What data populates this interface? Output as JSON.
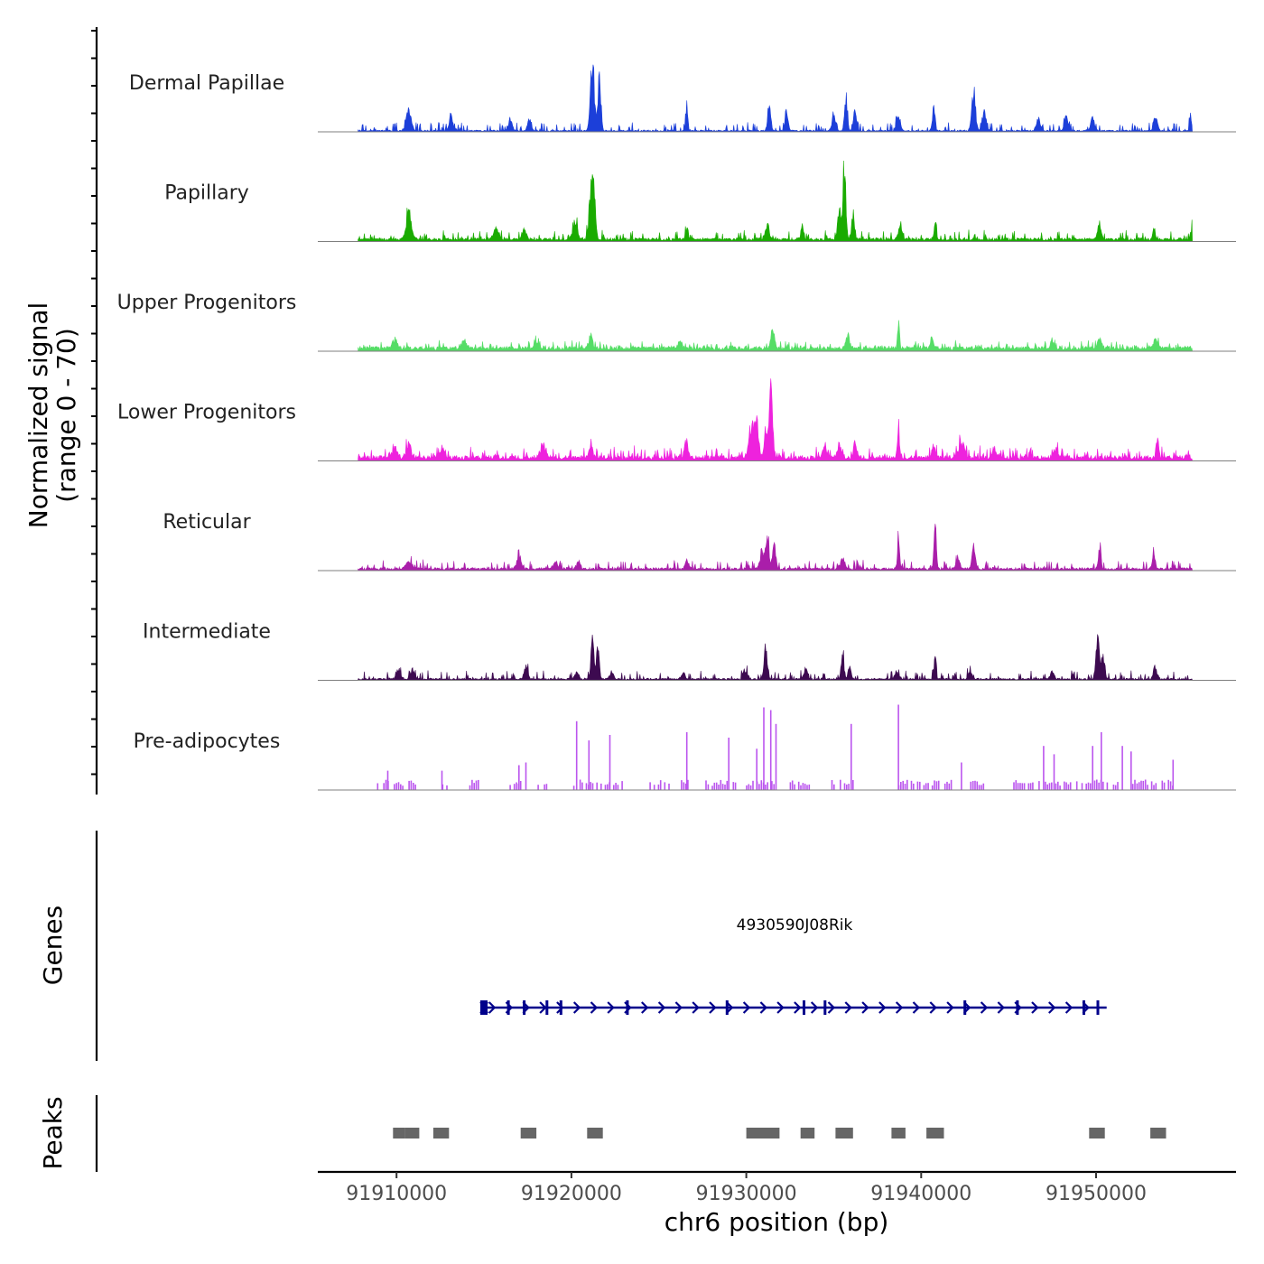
{
  "chart_data": {
    "type": "area",
    "title": "",
    "ylabel": "Normalized signal",
    "ylabel_range": "(range 0 - 70)",
    "ylim": [
      0,
      70
    ],
    "xlabel": "chr6 position (bp)",
    "xlim": [
      91905500,
      91958000
    ],
    "x_ticks": [
      91910000,
      91920000,
      91930000,
      91940000,
      91950000
    ],
    "x_tick_labels": [
      "91910000",
      "91920000",
      "91930000",
      "91940000",
      "91950000"
    ],
    "signal_extent": [
      91907800,
      91955500
    ],
    "tracks": [
      {
        "name": "Dermal Papillae",
        "color": "#1c3fd9",
        "sparse": false,
        "baseline": 0.6,
        "noise": 0.9,
        "peaks": [
          [
            91910700,
            11,
            200
          ],
          [
            91913100,
            8,
            150
          ],
          [
            91916500,
            6,
            150
          ],
          [
            91917600,
            6,
            150
          ],
          [
            91921200,
            38,
            150
          ],
          [
            91921600,
            30,
            120
          ],
          [
            91926600,
            14,
            80
          ],
          [
            91931300,
            13,
            120
          ],
          [
            91932300,
            11,
            120
          ],
          [
            91935000,
            7,
            150
          ],
          [
            91935700,
            17,
            120
          ],
          [
            91936200,
            10,
            120
          ],
          [
            91938700,
            8,
            150
          ],
          [
            91940700,
            12,
            100
          ],
          [
            91943000,
            21,
            150
          ],
          [
            91943600,
            10,
            150
          ],
          [
            91946700,
            7,
            150
          ],
          [
            91948300,
            7,
            150
          ],
          [
            91949800,
            7,
            150
          ],
          [
            91953400,
            7,
            150
          ],
          [
            91955400,
            8,
            80
          ]
        ]
      },
      {
        "name": "Papillary",
        "color": "#1aab00",
        "sparse": false,
        "baseline": 1.2,
        "noise": 0.9,
        "peaks": [
          [
            91910700,
            14,
            200
          ],
          [
            91915700,
            6,
            200
          ],
          [
            91917300,
            5,
            150
          ],
          [
            91920200,
            9,
            200
          ],
          [
            91921100,
            24,
            150
          ],
          [
            91921300,
            28,
            120
          ],
          [
            91926600,
            7,
            100
          ],
          [
            91931200,
            8,
            150
          ],
          [
            91933200,
            7,
            100
          ],
          [
            91935600,
            40,
            120
          ],
          [
            91935300,
            14,
            120
          ],
          [
            91936100,
            14,
            100
          ],
          [
            91938800,
            7,
            150
          ],
          [
            91940800,
            8,
            100
          ],
          [
            91950200,
            6,
            150
          ],
          [
            91953300,
            6,
            100
          ],
          [
            91955500,
            9,
            80
          ]
        ]
      },
      {
        "name": "Upper Progenitors",
        "color": "#55dd66",
        "sparse": false,
        "baseline": 1.6,
        "noise": 0.7,
        "peaks": [
          [
            91909900,
            5,
            200
          ],
          [
            91913900,
            4,
            200
          ],
          [
            91918000,
            4,
            200
          ],
          [
            91921100,
            6,
            150
          ],
          [
            91926200,
            4,
            150
          ],
          [
            91931500,
            10,
            150
          ],
          [
            91935800,
            7,
            150
          ],
          [
            91938700,
            14,
            80
          ],
          [
            91940600,
            5,
            150
          ],
          [
            91947500,
            4,
            150
          ],
          [
            91950200,
            5,
            150
          ],
          [
            91953400,
            5,
            150
          ]
        ]
      },
      {
        "name": "Lower Progenitors",
        "color": "#ee22dd",
        "sparse": false,
        "baseline": 1.8,
        "noise": 1.1,
        "peaks": [
          [
            91909900,
            6,
            200
          ],
          [
            91910700,
            7,
            200
          ],
          [
            91912600,
            6,
            200
          ],
          [
            91918400,
            8,
            200
          ],
          [
            91921100,
            6,
            150
          ],
          [
            91926600,
            7,
            120
          ],
          [
            91930300,
            18,
            200
          ],
          [
            91930600,
            18,
            150
          ],
          [
            91931400,
            36,
            150
          ],
          [
            91931100,
            12,
            120
          ],
          [
            91934500,
            7,
            150
          ],
          [
            91935300,
            7,
            150
          ],
          [
            91936200,
            8,
            120
          ],
          [
            91938700,
            17,
            80
          ],
          [
            91940700,
            7,
            120
          ],
          [
            91942300,
            9,
            250
          ],
          [
            91944200,
            5,
            200
          ],
          [
            91947700,
            5,
            150
          ],
          [
            91953500,
            9,
            120
          ]
        ]
      },
      {
        "name": "Reticular",
        "color": "#aa1eaa",
        "sparse": false,
        "baseline": 1.0,
        "noise": 0.9,
        "peaks": [
          [
            91910700,
            5,
            200
          ],
          [
            91917000,
            6,
            200
          ],
          [
            91919100,
            4,
            150
          ],
          [
            91920400,
            4,
            150
          ],
          [
            91926600,
            5,
            150
          ],
          [
            91930900,
            10,
            150
          ],
          [
            91931200,
            18,
            120
          ],
          [
            91931600,
            14,
            120
          ],
          [
            91935500,
            5,
            150
          ],
          [
            91938700,
            18,
            80
          ],
          [
            91940800,
            21,
            100
          ],
          [
            91942100,
            6,
            150
          ],
          [
            91943000,
            13,
            120
          ],
          [
            91950200,
            12,
            100
          ],
          [
            91953300,
            8,
            120
          ]
        ]
      },
      {
        "name": "Intermediate",
        "color": "#3d0a50",
        "sparse": false,
        "baseline": 0.7,
        "noise": 0.9,
        "peaks": [
          [
            91910100,
            6,
            150
          ],
          [
            91910900,
            5,
            150
          ],
          [
            91917400,
            7,
            150
          ],
          [
            91920300,
            4,
            150
          ],
          [
            91921200,
            26,
            100
          ],
          [
            91921500,
            16,
            120
          ],
          [
            91922300,
            4,
            150
          ],
          [
            91926400,
            4,
            150
          ],
          [
            91930000,
            4,
            150
          ],
          [
            91931100,
            21,
            120
          ],
          [
            91933400,
            5,
            150
          ],
          [
            91935500,
            12,
            120
          ],
          [
            91935900,
            7,
            120
          ],
          [
            91938600,
            4,
            150
          ],
          [
            91940800,
            13,
            80
          ],
          [
            91942800,
            4,
            150
          ],
          [
            91947500,
            4,
            150
          ],
          [
            91950100,
            20,
            150
          ],
          [
            91950400,
            12,
            120
          ],
          [
            91953400,
            5,
            150
          ]
        ]
      },
      {
        "name": "Pre-adipocytes",
        "color": "#bb55ee",
        "sparse": true,
        "segments": [
          [
            91908800,
            91911100
          ],
          [
            91912400,
            91912900
          ],
          [
            91914200,
            91914700
          ],
          [
            91916500,
            91917100
          ],
          [
            91918100,
            91918700
          ],
          [
            91919900,
            91922900
          ],
          [
            91924500,
            91926700
          ],
          [
            91927700,
            91929400
          ],
          [
            91929900,
            91931700
          ],
          [
            91932400,
            91933700
          ],
          [
            91934900,
            91936100
          ],
          [
            91938600,
            91941800
          ],
          [
            91942600,
            91943900
          ],
          [
            91945300,
            91949000
          ],
          [
            91949200,
            91951300
          ],
          [
            91952100,
            91954500
          ]
        ],
        "spikes": [
          [
            91920300,
            25
          ],
          [
            91921000,
            18
          ],
          [
            91922200,
            20
          ],
          [
            91926600,
            21
          ],
          [
            91929000,
            19
          ],
          [
            91930600,
            15
          ],
          [
            91931000,
            30
          ],
          [
            91931400,
            29
          ],
          [
            91931700,
            24
          ],
          [
            91936000,
            24
          ],
          [
            91938700,
            31
          ],
          [
            91942300,
            10
          ],
          [
            91947000,
            16
          ],
          [
            91947600,
            13
          ],
          [
            91949800,
            16
          ],
          [
            91950300,
            21
          ],
          [
            91951500,
            16
          ],
          [
            91952000,
            14
          ],
          [
            91954400,
            11
          ],
          [
            91909500,
            7
          ],
          [
            91912600,
            7
          ],
          [
            91917000,
            9
          ],
          [
            91917400,
            10
          ]
        ]
      }
    ],
    "gene_track": {
      "title": "Genes",
      "gene_name": "4930590J08Rik",
      "start": 91914900,
      "end": 91950600,
      "strand": "+",
      "color": "#00008b",
      "exons": [
        91915000,
        91916400,
        91917300,
        91918600,
        91919400,
        91923200,
        91928900,
        91933300,
        91934500,
        91942500,
        91945500,
        91949300,
        91950100
      ]
    },
    "peak_track": {
      "title": "Peaks",
      "color": "#666666",
      "peaks": [
        [
          91909800,
          91910500
        ],
        [
          91910500,
          91911300
        ],
        [
          91912100,
          91913000
        ],
        [
          91917100,
          91918000
        ],
        [
          91920900,
          91921800
        ],
        [
          91930000,
          91930900
        ],
        [
          91930900,
          91931900
        ],
        [
          91933100,
          91933900
        ],
        [
          91935100,
          91936100
        ],
        [
          91938300,
          91939100
        ],
        [
          91940300,
          91941300
        ],
        [
          91949600,
          91950500
        ],
        [
          91953100,
          91954000
        ]
      ]
    }
  }
}
